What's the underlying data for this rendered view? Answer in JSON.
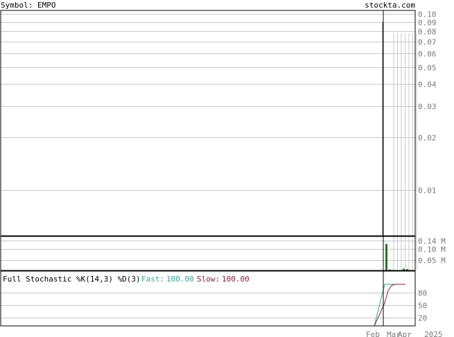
{
  "header": {
    "symbol_label": "Symbol: EMPO",
    "site": "stockta.com"
  },
  "colors": {
    "grid": "#c8c8c8",
    "axis_text": "#7a7a7a",
    "frame": "#000000",
    "volume_bar": "#2f6f2f",
    "fast": "#3aa38e",
    "slow": "#8b1a3a"
  },
  "chart_data": [
    {
      "type": "line",
      "panel": "price",
      "title": "",
      "scale": "log",
      "ylim": [
        0.0055,
        0.105
      ],
      "y_ticks": [
        0.1,
        0.09,
        0.08,
        0.07,
        0.06,
        0.05,
        0.04,
        0.03,
        0.02,
        0.01
      ],
      "y_tick_labels": [
        "0.10",
        "0.09",
        "0.08",
        "0.07",
        "0.06",
        "0.05",
        "0.04",
        "0.03",
        "0.02",
        "0.01"
      ],
      "series": [
        {
          "values": [
            0.09,
            0.0055
          ]
        }
      ]
    },
    {
      "type": "bar",
      "panel": "volume",
      "ylim": [
        0,
        0.16
      ],
      "y_ticks": [
        0.14,
        0.1,
        0.05
      ],
      "y_tick_labels": [
        "0.14 M",
        "0.10 M",
        "0.05 M"
      ],
      "values": [
        0.125,
        0.004,
        0.002,
        0.001,
        0.001,
        0.008,
        0.006
      ]
    },
    {
      "type": "line",
      "panel": "stochastic",
      "title": "Full Stochastic %K(14,3) %D(3)",
      "ylim": [
        0,
        100
      ],
      "y_ticks": [
        80,
        50,
        20
      ],
      "y_tick_labels": [
        "80",
        "50",
        "20"
      ],
      "fast_label": "Fast:",
      "fast_value": "100.00",
      "slow_label": "Slow:",
      "slow_value": "100.00",
      "series": [
        {
          "values": [
            0,
            100,
            100,
            100,
            100,
            100,
            100,
            100
          ]
        },
        {
          "values": [
            0,
            55,
            85,
            97,
            100,
            100,
            100,
            100
          ]
        }
      ]
    }
  ],
  "x_axis": {
    "labels": [
      "Feb",
      "Mar",
      "Apr",
      "2025"
    ]
  }
}
